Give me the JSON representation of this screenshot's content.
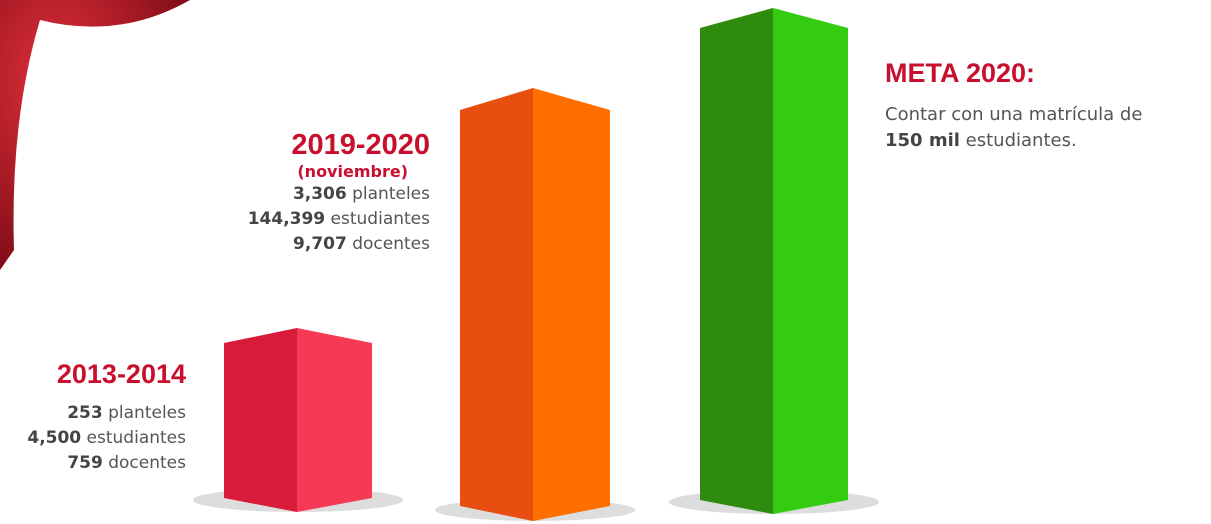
{
  "periods": [
    {
      "title": "2013-2014",
      "items": [
        {
          "number": "253",
          "text": "planteles"
        },
        {
          "number": "4,500",
          "text": "estudiantes"
        },
        {
          "number": "759",
          "text": "docentes"
        }
      ]
    },
    {
      "title": "2019-2020",
      "subtitle": "(noviembre)",
      "items": [
        {
          "number": "3,306",
          "text": "planteles"
        },
        {
          "number": "144,399",
          "text": "estudiantes"
        },
        {
          "number": "9,707",
          "text": "docentes"
        }
      ]
    }
  ],
  "goal": {
    "title": "META 2020:",
    "text_before": "Contar con una matrícula de",
    "number": "150 mil",
    "text_after": "estudiantes."
  }
}
